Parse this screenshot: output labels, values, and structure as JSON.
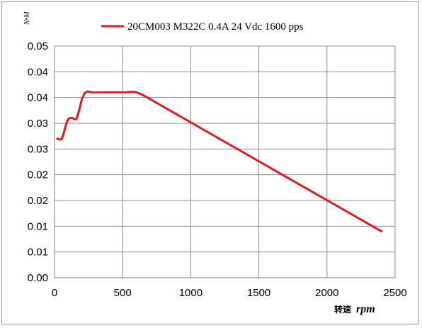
{
  "chart_data": {
    "type": "line",
    "ylabel": "N•M",
    "xlabel_cjk": "转速",
    "xlabel_unit": "rpm",
    "xlim": [
      0,
      2500
    ],
    "ylim": [
      0,
      0.05
    ],
    "x_ticks": [
      "0",
      "500",
      "1000",
      "1500",
      "2000",
      "2500"
    ],
    "y_ticks": [
      "0.00",
      "0.01",
      "0.01",
      "0.02",
      "0.02",
      "0.03",
      "0.03",
      "0.04",
      "0.04",
      "0.05"
    ],
    "grid": true,
    "legend_position": "top",
    "series": [
      {
        "name": "20CM003 M322C 0.4A  24 Vdc  1600 pps",
        "color": "#e31a1c",
        "x": [
          20,
          40,
          55,
          70,
          85,
          100,
          115,
          130,
          145,
          160,
          180,
          200,
          220,
          240,
          260,
          280,
          300,
          400,
          520,
          560,
          590,
          620,
          650,
          2400
        ],
        "y": [
          0.03,
          0.0298,
          0.03,
          0.0315,
          0.0332,
          0.0342,
          0.0345,
          0.0345,
          0.0342,
          0.0342,
          0.036,
          0.0385,
          0.0398,
          0.0402,
          0.0401,
          0.04,
          0.04,
          0.04,
          0.04,
          0.0401,
          0.0401,
          0.0398,
          0.0394,
          0.01
        ]
      }
    ]
  }
}
